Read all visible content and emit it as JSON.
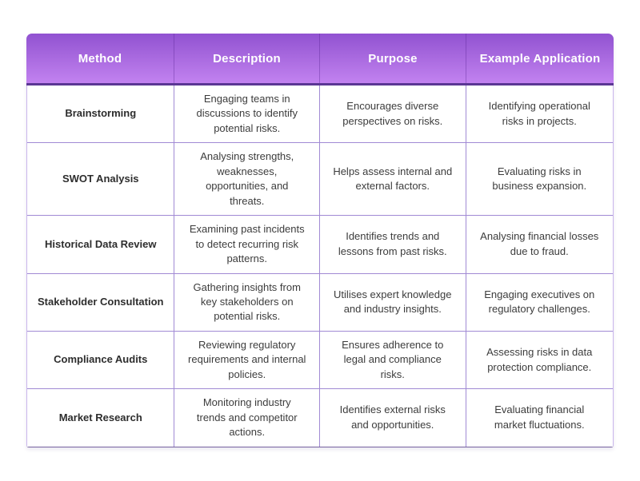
{
  "table": {
    "columns": [
      "Method",
      "Description",
      "Purpose",
      "Example Application"
    ],
    "rows": [
      {
        "method": "Brainstorming",
        "description": "Engaging teams in discussions to identify potential risks.",
        "purpose": "Encourages diverse perspectives on risks.",
        "example": "Identifying operational risks in projects."
      },
      {
        "method": "SWOT Analysis",
        "description": "Analysing strengths, weaknesses, opportunities, and threats.",
        "purpose": "Helps assess internal and external factors.",
        "example": "Evaluating risks in business expansion."
      },
      {
        "method": "Historical Data Review",
        "description": "Examining past incidents to detect recurring risk patterns.",
        "purpose": "Identifies trends and lessons from past risks.",
        "example": "Analysing financial losses due to fraud."
      },
      {
        "method": "Stakeholder Consultation",
        "description": "Gathering insights from key stakeholders on potential risks.",
        "purpose": "Utilises expert knowledge and industry insights.",
        "example": "Engaging executives on regulatory challenges."
      },
      {
        "method": "Compliance Audits",
        "description": "Reviewing regulatory requirements and internal policies.",
        "purpose": "Ensures adherence to legal and compliance risks.",
        "example": "Assessing risks in data protection compliance."
      },
      {
        "method": "Market Research",
        "description": "Monitoring industry trends and competitor actions.",
        "purpose": "Identifies external risks and opportunities.",
        "example": "Evaluating financial market fluctuations."
      }
    ],
    "colors": {
      "header_gradient_top": "#9152d1",
      "header_gradient_bottom": "#c282f0",
      "header_bottom_rule": "#5b3794",
      "inner_grid_border": "#a18ad4",
      "outer_side_border": "#c9b6ec",
      "outer_bottom_border": "#75619f",
      "header_text": "#ffffff",
      "body_text": "#3c3c3c"
    }
  }
}
